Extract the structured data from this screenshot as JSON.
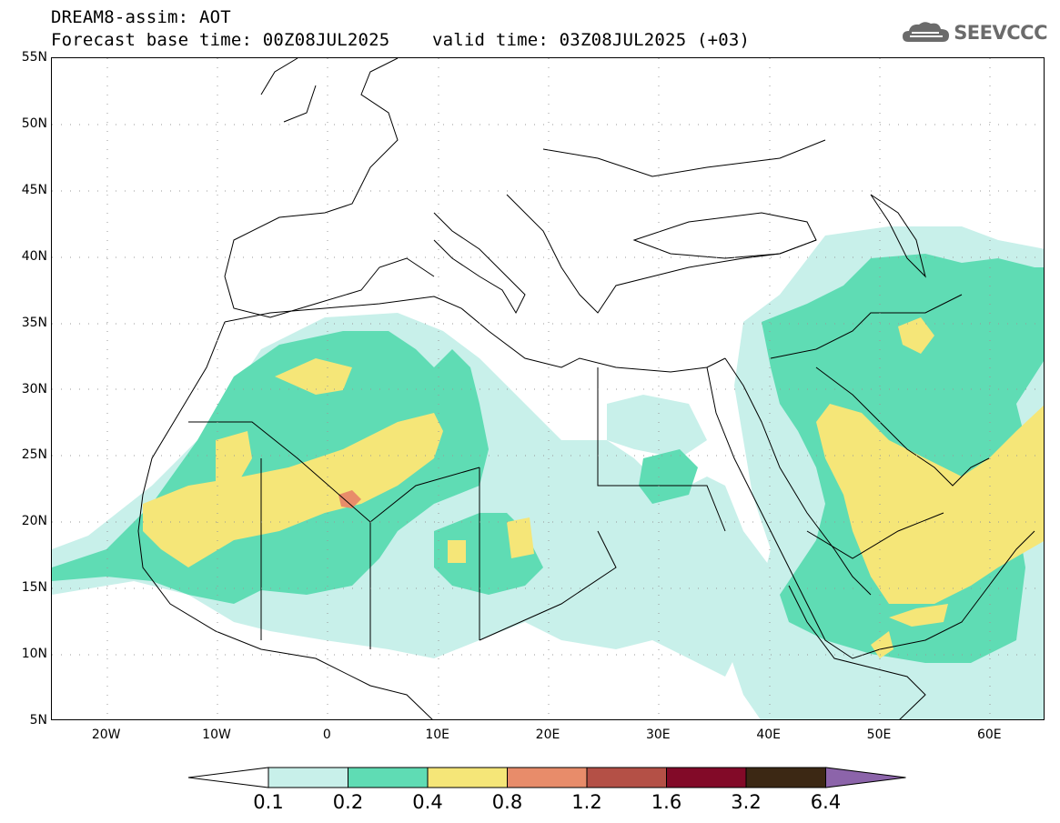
{
  "header": {
    "line1": "DREAM8-assim: AOT",
    "line2": "Forecast base time: 00Z08JUL2025    valid time: 03Z08JUL2025 (+03)",
    "logo_text": "SEEVCCC"
  },
  "map": {
    "lon_range": [
      -25,
      65
    ],
    "lat_range": [
      5,
      55
    ],
    "lat_ticks": [
      {
        "value": 55,
        "label": "55N"
      },
      {
        "value": 50,
        "label": "50N"
      },
      {
        "value": 45,
        "label": "45N"
      },
      {
        "value": 40,
        "label": "40N"
      },
      {
        "value": 35,
        "label": "35N"
      },
      {
        "value": 30,
        "label": "30N"
      },
      {
        "value": 25,
        "label": "25N"
      },
      {
        "value": 20,
        "label": "20N"
      },
      {
        "value": 15,
        "label": "15N"
      },
      {
        "value": 10,
        "label": "10N"
      },
      {
        "value": 5,
        "label": "5N"
      }
    ],
    "lon_ticks": [
      {
        "value": -20,
        "label": "20W"
      },
      {
        "value": -10,
        "label": "10W"
      },
      {
        "value": 0,
        "label": "0"
      },
      {
        "value": 10,
        "label": "10E"
      },
      {
        "value": 20,
        "label": "20E"
      },
      {
        "value": 30,
        "label": "30E"
      },
      {
        "value": 40,
        "label": "40E"
      },
      {
        "value": 50,
        "label": "50E"
      },
      {
        "value": 60,
        "label": "60E"
      }
    ],
    "grid": "dotted",
    "coastline_color": "#000000"
  },
  "legend": {
    "boundaries": [
      "0.1",
      "0.2",
      "0.4",
      "0.8",
      "1.2",
      "1.6",
      "3.2",
      "6.4"
    ],
    "colors": [
      "#c8f0ea",
      "#5fdcb4",
      "#f5e678",
      "#e88c6a",
      "#b45046",
      "#820a28",
      "#3c2814",
      "#8c64aa"
    ],
    "low_color": "#ffffff"
  }
}
